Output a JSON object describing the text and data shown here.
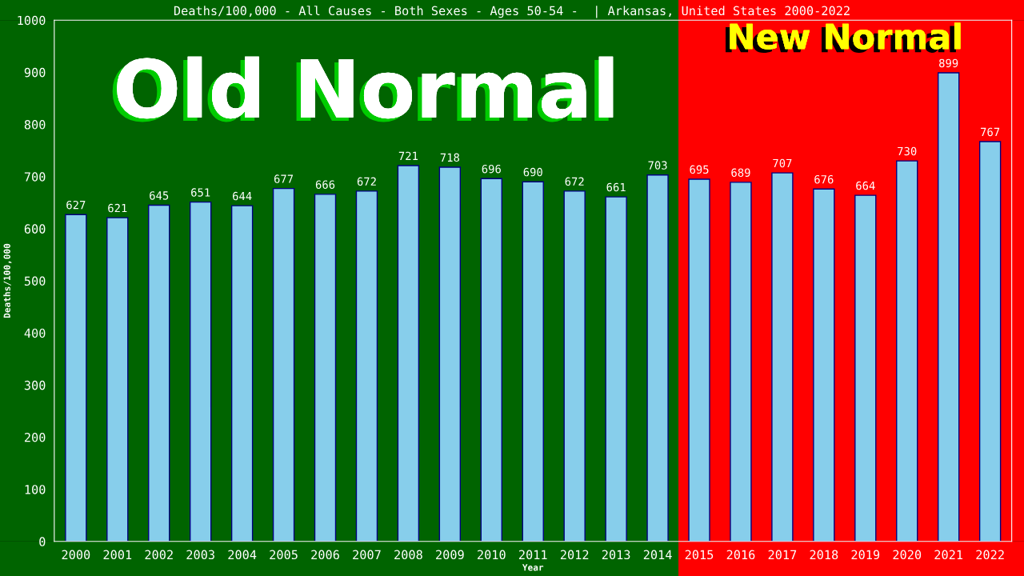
{
  "chart_data": {
    "type": "bar",
    "title": "Deaths/100,000 - All Causes - Both Sexes - Ages 50-54 -  | Arkansas, United States 2000-2022",
    "xlabel": "Year",
    "ylabel": "Deaths/100,000",
    "categories": [
      "2000",
      "2001",
      "2002",
      "2003",
      "2004",
      "2005",
      "2006",
      "2007",
      "2008",
      "2009",
      "2010",
      "2011",
      "2012",
      "2013",
      "2014",
      "2015",
      "2016",
      "2017",
      "2018",
      "2019",
      "2020",
      "2021",
      "2022"
    ],
    "values": [
      627,
      621,
      645,
      651,
      644,
      677,
      666,
      672,
      721,
      718,
      696,
      690,
      672,
      661,
      703,
      695,
      689,
      707,
      676,
      664,
      730,
      899,
      767
    ],
    "color": "#87ceeb",
    "ylim": [
      0,
      1000
    ],
    "yticks": [
      0,
      100,
      200,
      300,
      400,
      500,
      600,
      700,
      800,
      900,
      1000
    ],
    "data_labels": true,
    "grid": false,
    "legend": false,
    "bands": [
      {
        "axis": "x",
        "from": "2000",
        "to": "2014",
        "label": "Old Normal",
        "color": "#006400"
      },
      {
        "axis": "x",
        "from": "2015",
        "to": "2022",
        "label": "New Normal",
        "color": "#ff0000"
      }
    ]
  }
}
